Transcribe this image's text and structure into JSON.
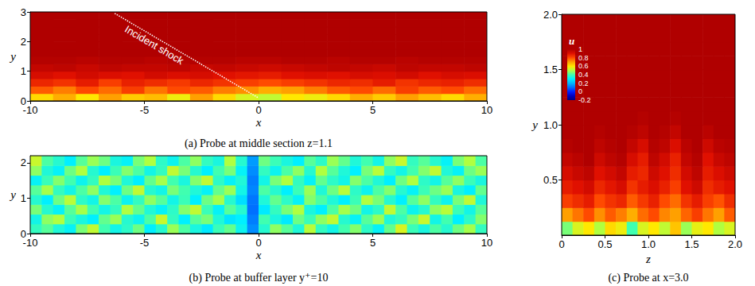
{
  "chart_data": [
    {
      "type": "heatmap",
      "caption": "(a) Probe at middle section z=1.1",
      "xlabel": "x",
      "ylabel": "y",
      "xlim": [
        -10,
        10
      ],
      "ylim": [
        0,
        3
      ],
      "xticks": [
        -10,
        -5,
        0,
        5,
        10
      ],
      "yticks": [
        0,
        1,
        2,
        3
      ],
      "x": [
        -9.5,
        -8.5,
        -7.5,
        -6.5,
        -5.5,
        -4.5,
        -3.5,
        -2.5,
        -1.5,
        -0.5,
        0.5,
        1.5,
        2.5,
        3.5,
        4.5,
        5.5,
        6.5,
        7.5,
        8.5,
        9.5
      ],
      "y": [
        0.125,
        0.375,
        0.625,
        0.875,
        1.125,
        1.375,
        1.625,
        1.875,
        2.125,
        2.375,
        2.625,
        2.875
      ],
      "cells": [
        [
          0.62,
          0.68,
          0.6,
          0.7,
          0.64,
          0.66,
          0.58,
          0.7,
          0.62,
          0.55,
          0.52,
          0.6,
          0.58,
          0.62,
          0.68,
          0.64,
          0.7,
          0.66,
          0.62,
          0.68
        ],
        [
          0.78,
          0.74,
          0.8,
          0.76,
          0.82,
          0.75,
          0.8,
          0.78,
          0.74,
          0.72,
          0.68,
          0.7,
          0.74,
          0.78,
          0.8,
          0.76,
          0.82,
          0.78,
          0.8,
          0.76
        ],
        [
          0.86,
          0.84,
          0.88,
          0.82,
          0.87,
          0.85,
          0.83,
          0.86,
          0.84,
          0.82,
          0.8,
          0.82,
          0.84,
          0.86,
          0.85,
          0.88,
          0.84,
          0.86,
          0.87,
          0.85
        ],
        [
          0.92,
          0.9,
          0.93,
          0.91,
          0.9,
          0.93,
          0.91,
          0.92,
          0.9,
          0.89,
          0.88,
          0.9,
          0.91,
          0.9,
          0.92,
          0.91,
          0.93,
          0.9,
          0.92,
          0.91
        ],
        [
          0.96,
          0.97,
          0.95,
          0.97,
          0.96,
          0.96,
          0.97,
          0.95,
          0.96,
          0.95,
          0.94,
          0.95,
          0.96,
          0.97,
          0.96,
          0.95,
          0.97,
          0.96,
          0.96,
          0.97
        ],
        [
          0.99,
          0.99,
          0.98,
          0.99,
          0.99,
          0.98,
          0.99,
          0.99,
          0.99,
          0.98,
          0.98,
          0.99,
          0.99,
          0.98,
          0.99,
          0.99,
          0.98,
          0.99,
          0.99,
          0.99
        ],
        [
          1,
          1,
          1,
          1,
          1,
          1,
          1,
          1,
          1,
          1,
          1,
          1,
          1,
          1,
          1,
          1,
          1,
          1,
          1,
          1
        ],
        [
          1,
          1,
          1,
          1,
          1,
          1,
          1,
          1,
          1,
          1,
          1,
          1,
          1,
          1,
          1,
          1,
          1,
          1,
          1,
          1
        ],
        [
          1,
          1,
          1,
          1,
          1,
          1,
          1,
          1,
          1,
          1,
          1,
          1,
          1,
          1,
          1,
          1,
          1,
          1,
          1,
          1
        ],
        [
          1,
          1,
          1,
          1,
          1,
          1,
          1,
          1,
          1,
          1,
          1,
          1,
          1,
          1,
          1,
          1,
          1,
          1,
          1,
          1
        ],
        [
          1,
          1,
          1,
          1,
          1,
          1,
          1,
          1,
          1,
          1,
          1,
          1,
          1,
          1,
          1,
          1,
          1,
          1,
          1,
          1
        ],
        [
          1,
          1,
          1,
          1,
          1,
          1,
          1,
          1,
          1,
          1,
          1,
          1,
          1,
          1,
          1,
          1,
          1,
          1,
          1,
          1
        ]
      ],
      "annotations": [
        {
          "text": "Incident shock",
          "x": [
            -6.3,
            0
          ],
          "y": [
            2.95,
            0.1
          ],
          "line_style": "dotted"
        }
      ]
    },
    {
      "type": "heatmap",
      "caption": "(b) Probe at buffer layer y⁺=10",
      "xlabel": "x",
      "ylabel": "y",
      "xlim": [
        -10,
        10
      ],
      "ylim": [
        0,
        2.2
      ],
      "xticks": [
        -10,
        -5,
        0,
        5,
        10
      ],
      "yticks": [
        0,
        1,
        2
      ],
      "x": [
        -9.75,
        -9.25,
        -8.75,
        -8.25,
        -7.75,
        -7.25,
        -6.75,
        -6.25,
        -5.75,
        -5.25,
        -4.75,
        -4.25,
        -3.75,
        -3.25,
        -2.75,
        -2.25,
        -1.75,
        -1.25,
        -0.75,
        -0.25,
        0.25,
        0.75,
        1.25,
        1.75,
        2.25,
        2.75,
        3.25,
        3.75,
        4.25,
        4.75,
        5.25,
        5.75,
        6.25,
        6.75,
        7.25,
        7.75,
        8.25,
        8.75,
        9.25,
        9.75
      ],
      "y": [
        0.1375,
        0.4125,
        0.6875,
        0.9625,
        1.2375,
        1.5125,
        1.7875,
        2.0625
      ],
      "cells": [
        [
          0.38,
          0.42,
          0.35,
          0.31,
          0.45,
          0.52,
          0.4,
          0.33,
          0.37,
          0.44,
          0.3,
          0.36,
          0.48,
          0.41,
          0.34,
          0.29,
          0.39,
          0.43,
          0.32,
          0.14,
          0.36,
          0.47,
          0.42,
          0.35,
          0.51,
          0.38,
          0.33,
          0.4,
          0.46,
          0.37,
          0.31,
          0.43,
          0.55,
          0.39,
          0.34,
          0.41,
          0.36,
          0.44,
          0.49,
          0.38
        ],
        [
          0.33,
          0.47,
          0.5,
          0.39,
          0.34,
          0.3,
          0.43,
          0.48,
          0.36,
          0.32,
          0.41,
          0.53,
          0.38,
          0.3,
          0.42,
          0.45,
          0.35,
          0.28,
          0.3,
          0.12,
          0.4,
          0.34,
          0.29,
          0.44,
          0.39,
          0.47,
          0.52,
          0.36,
          0.31,
          0.42,
          0.48,
          0.35,
          0.38,
          0.45,
          0.53,
          0.33,
          0.4,
          0.3,
          0.37,
          0.46
        ],
        [
          0.45,
          0.36,
          0.31,
          0.42,
          0.49,
          0.4,
          0.33,
          0.38,
          0.5,
          0.43,
          0.35,
          0.31,
          0.37,
          0.46,
          0.52,
          0.39,
          0.31,
          0.42,
          0.36,
          0.1,
          0.29,
          0.38,
          0.45,
          0.5,
          0.34,
          0.3,
          0.41,
          0.49,
          0.44,
          0.33,
          0.37,
          0.52,
          0.41,
          0.32,
          0.36,
          0.47,
          0.51,
          0.39,
          0.33,
          0.42
        ],
        [
          0.36,
          0.3,
          0.44,
          0.51,
          0.37,
          0.33,
          0.46,
          0.41,
          0.32,
          0.38,
          0.47,
          0.42,
          0.33,
          0.39,
          0.3,
          0.44,
          0.49,
          0.36,
          0.27,
          0.11,
          0.35,
          0.43,
          0.37,
          0.31,
          0.46,
          0.41,
          0.35,
          0.3,
          0.39,
          0.5,
          0.45,
          0.36,
          0.3,
          0.42,
          0.47,
          0.38,
          0.32,
          0.45,
          0.52,
          0.35
        ],
        [
          0.42,
          0.49,
          0.38,
          0.33,
          0.41,
          0.47,
          0.35,
          0.3,
          0.44,
          0.52,
          0.36,
          0.33,
          0.45,
          0.4,
          0.35,
          0.31,
          0.43,
          0.48,
          0.33,
          0.13,
          0.41,
          0.36,
          0.3,
          0.39,
          0.48,
          0.35,
          0.44,
          0.51,
          0.37,
          0.32,
          0.41,
          0.46,
          0.36,
          0.31,
          0.39,
          0.44,
          0.48,
          0.34,
          0.3,
          0.43
        ],
        [
          0.31,
          0.39,
          0.46,
          0.4,
          0.32,
          0.38,
          0.5,
          0.45,
          0.35,
          0.3,
          0.43,
          0.49,
          0.4,
          0.34,
          0.46,
          0.52,
          0.37,
          0.31,
          0.35,
          0.12,
          0.33,
          0.45,
          0.5,
          0.38,
          0.31,
          0.43,
          0.37,
          0.33,
          0.46,
          0.41,
          0.35,
          0.3,
          0.44,
          0.5,
          0.37,
          0.33,
          0.42,
          0.47,
          0.39,
          0.34
        ],
        [
          0.47,
          0.35,
          0.31,
          0.44,
          0.5,
          0.36,
          0.3,
          0.39,
          0.46,
          0.41,
          0.33,
          0.38,
          0.52,
          0.45,
          0.36,
          0.3,
          0.4,
          0.45,
          0.31,
          0.14,
          0.38,
          0.32,
          0.41,
          0.47,
          0.36,
          0.5,
          0.42,
          0.35,
          0.3,
          0.45,
          0.51,
          0.38,
          0.33,
          0.4,
          0.46,
          0.52,
          0.35,
          0.31,
          0.44,
          0.48
        ],
        [
          0.53,
          0.41,
          0.36,
          0.3,
          0.42,
          0.48,
          0.44,
          0.34,
          0.31,
          0.45,
          0.5,
          0.37,
          0.32,
          0.41,
          0.47,
          0.38,
          0.34,
          0.5,
          0.36,
          0.16,
          0.44,
          0.39,
          0.34,
          0.3,
          0.42,
          0.37,
          0.48,
          0.43,
          0.35,
          0.4,
          0.33,
          0.47,
          0.53,
          0.38,
          0.42,
          0.36,
          0.31,
          0.45,
          0.5,
          0.41
        ]
      ]
    },
    {
      "type": "heatmap",
      "caption": "(c) Probe at x=3.0",
      "xlabel": "z",
      "ylabel": "y",
      "xlim": [
        0,
        2
      ],
      "ylim": [
        0,
        2
      ],
      "xticks": [
        0,
        0.5,
        {
          "value": 1,
          "label": "1.0"
        },
        1.5,
        {
          "value": 2,
          "label": "2.0"
        }
      ],
      "yticks": [
        0.5,
        {
          "value": 1,
          "label": "1.0"
        },
        1.5,
        {
          "value": 2,
          "label": "2.0"
        }
      ],
      "x": [
        0.0625,
        0.1875,
        0.3125,
        0.4375,
        0.5625,
        0.6875,
        0.8125,
        0.9375,
        1.0625,
        1.1875,
        1.3125,
        1.4375,
        1.5625,
        1.6875,
        1.8125,
        1.9375
      ],
      "y": [
        0.0625,
        0.1875,
        0.3125,
        0.4375,
        0.5625,
        0.6875,
        0.8125,
        0.9375,
        1.0625,
        1.1875,
        1.3125,
        1.4375,
        1.5625,
        1.6875,
        1.8125,
        1.9375
      ],
      "cells": [
        [
          0.45,
          0.55,
          0.6,
          0.5,
          0.62,
          0.58,
          0.4,
          0.55,
          0.6,
          0.52,
          0.65,
          0.48,
          0.57,
          0.6,
          0.5,
          0.55
        ],
        [
          0.7,
          0.75,
          0.8,
          0.72,
          0.78,
          0.74,
          0.68,
          0.76,
          0.8,
          0.73,
          0.7,
          0.77,
          0.82,
          0.75,
          0.7,
          0.78
        ],
        [
          0.82,
          0.85,
          0.88,
          0.8,
          0.84,
          0.86,
          0.78,
          0.83,
          0.87,
          0.8,
          0.76,
          0.84,
          0.88,
          0.82,
          0.79,
          0.85
        ],
        [
          0.88,
          0.9,
          0.93,
          0.86,
          0.89,
          0.92,
          0.84,
          0.88,
          0.91,
          0.87,
          0.82,
          0.9,
          0.94,
          0.85,
          0.88,
          0.9
        ],
        [
          0.92,
          0.95,
          0.97,
          0.9,
          0.93,
          0.96,
          0.88,
          0.86,
          0.94,
          0.9,
          0.85,
          0.93,
          0.97,
          0.88,
          0.91,
          0.94
        ],
        [
          0.96,
          0.98,
          1,
          0.94,
          0.97,
          0.99,
          0.92,
          0.88,
          0.97,
          0.93,
          0.87,
          0.96,
          0.99,
          0.9,
          0.95,
          0.97
        ],
        [
          0.99,
          1,
          1,
          0.97,
          0.99,
          1,
          0.96,
          0.92,
          0.99,
          0.97,
          0.91,
          0.98,
          1,
          0.94,
          0.98,
          0.99
        ],
        [
          1,
          1,
          1,
          0.99,
          1,
          1,
          0.99,
          0.97,
          1,
          0.99,
          0.96,
          1,
          1,
          0.98,
          1,
          1
        ],
        [
          1,
          1,
          1,
          1,
          1,
          1,
          1,
          0.99,
          1,
          1,
          0.99,
          1,
          1,
          1,
          1,
          1
        ],
        [
          1,
          1,
          1,
          1,
          1,
          1,
          1,
          1,
          1,
          1,
          1,
          1,
          1,
          1,
          1,
          1
        ],
        [
          1,
          1,
          1,
          1,
          1,
          1,
          1,
          1,
          1,
          1,
          1,
          1,
          1,
          1,
          1,
          1
        ],
        [
          1,
          1,
          1,
          1,
          1,
          1,
          1,
          1,
          1,
          1,
          1,
          1,
          1,
          1,
          1,
          1
        ],
        [
          1,
          1,
          1,
          1,
          1,
          1,
          1,
          1,
          1,
          1,
          1,
          1,
          1,
          1,
          1,
          1
        ],
        [
          1,
          1,
          1,
          1,
          1,
          1,
          1,
          1,
          1,
          1,
          1,
          1,
          1,
          1,
          1,
          1
        ],
        [
          1,
          1,
          1,
          1,
          1,
          1,
          1,
          1,
          1,
          1,
          1,
          1,
          1,
          1,
          1,
          1
        ],
        [
          1,
          1,
          1,
          1,
          1,
          1,
          1,
          1,
          1,
          1,
          1,
          1,
          1,
          1,
          1,
          1
        ]
      ],
      "colorbar": {
        "title": "u",
        "range": [
          -0.2,
          1
        ],
        "ticks": [
          1,
          0.8,
          0.6,
          0.4,
          0.2,
          0,
          -0.2
        ]
      }
    }
  ]
}
